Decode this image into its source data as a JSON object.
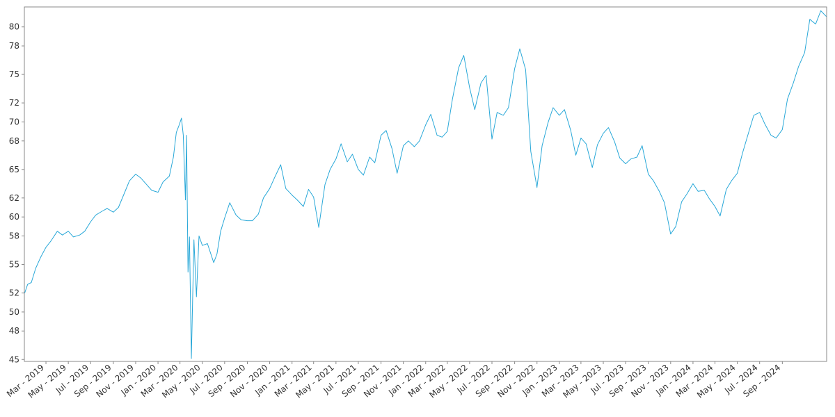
{
  "chart_data": {
    "type": "line",
    "title": "",
    "xlabel": "",
    "ylabel": "",
    "xlim": [
      "2019-01-01",
      "2024-12-31"
    ],
    "ylim": [
      44.8,
      82.1
    ],
    "grid": false,
    "legend": "none",
    "line_color": "#29a8d8",
    "y_ticks": [
      45,
      48,
      50,
      52,
      55,
      58,
      60,
      62,
      65,
      68,
      70,
      72,
      75,
      78,
      80
    ],
    "y_tick_labels": [
      "45",
      "48",
      "50",
      "52",
      "55",
      "58",
      "60",
      "62",
      "65",
      "68",
      "70",
      "72",
      "75",
      "78",
      "80"
    ],
    "x_ticks": [
      "2019-03-01",
      "2019-05-01",
      "2019-07-01",
      "2019-09-01",
      "2019-11-01",
      "2020-01-01",
      "2020-03-01",
      "2020-05-01",
      "2020-07-01",
      "2020-09-01",
      "2020-11-01",
      "2021-01-01",
      "2021-03-01",
      "2021-05-01",
      "2021-07-01",
      "2021-09-01",
      "2021-11-01",
      "2022-01-01",
      "2022-03-01",
      "2022-05-01",
      "2022-07-01",
      "2022-09-01",
      "2022-11-01",
      "2023-01-01",
      "2023-03-01",
      "2023-05-01",
      "2023-07-01",
      "2023-09-01",
      "2023-11-01",
      "2024-01-01",
      "2024-03-01",
      "2024-05-01",
      "2024-07-01",
      "2024-09-01"
    ],
    "x_tick_labels": [
      "Mar - 2019",
      "May - 2019",
      "Jul - 2019",
      "Sep - 2019",
      "Nov - 2019",
      "Jan - 2020",
      "Mar - 2020",
      "May - 2020",
      "Jul - 2020",
      "Sep - 2020",
      "Nov - 2020",
      "Jan - 2021",
      "Mar - 2021",
      "May - 2021",
      "Jul - 2021",
      "Sep - 2021",
      "Nov - 2021",
      "Jan - 2022",
      "Mar - 2022",
      "May - 2022",
      "Jul - 2022",
      "Sep - 2022",
      "Nov - 2022",
      "Jan - 2023",
      "Mar - 2023",
      "May - 2023",
      "Jul - 2023",
      "Sep - 2023",
      "Nov - 2023",
      "Jan - 2024",
      "Mar - 2024",
      "May - 2024",
      "Jul - 2024",
      "Sep - 2024"
    ],
    "series": [
      {
        "x": [
          "2019-01-02",
          "2019-01-10",
          "2019-01-20",
          "2019-02-01",
          "2019-02-15",
          "2019-03-01",
          "2019-03-15",
          "2019-04-01",
          "2019-04-15",
          "2019-05-01",
          "2019-05-15",
          "2019-06-01",
          "2019-06-15",
          "2019-07-01",
          "2019-07-15",
          "2019-08-01",
          "2019-08-15",
          "2019-09-01",
          "2019-09-15",
          "2019-10-01",
          "2019-10-15",
          "2019-11-01",
          "2019-11-15",
          "2019-12-01",
          "2019-12-15",
          "2020-01-01",
          "2020-01-15",
          "2020-02-01",
          "2020-02-12",
          "2020-02-20",
          "2020-02-27",
          "2020-03-05",
          "2020-03-10",
          "2020-03-16",
          "2020-03-19",
          "2020-03-23",
          "2020-03-27",
          "2020-04-01",
          "2020-04-08",
          "2020-04-15",
          "2020-04-22",
          "2020-05-01",
          "2020-05-15",
          "2020-06-01",
          "2020-06-10",
          "2020-06-20",
          "2020-07-01",
          "2020-07-15",
          "2020-08-01",
          "2020-08-15",
          "2020-09-01",
          "2020-09-15",
          "2020-10-01",
          "2020-10-15",
          "2020-11-01",
          "2020-11-15",
          "2020-12-01",
          "2020-12-15",
          "2021-01-01",
          "2021-01-15",
          "2021-02-01",
          "2021-02-15",
          "2021-03-01",
          "2021-03-15",
          "2021-04-01",
          "2021-04-15",
          "2021-05-01",
          "2021-05-15",
          "2021-06-01",
          "2021-06-15",
          "2021-07-01",
          "2021-07-15",
          "2021-08-01",
          "2021-08-15",
          "2021-09-01",
          "2021-09-15",
          "2021-10-01",
          "2021-10-15",
          "2021-11-01",
          "2021-11-15",
          "2021-12-01",
          "2021-12-15",
          "2022-01-01",
          "2022-01-15",
          "2022-02-01",
          "2022-02-15",
          "2022-03-01",
          "2022-03-15",
          "2022-04-01",
          "2022-04-15",
          "2022-05-01",
          "2022-05-15",
          "2022-06-01",
          "2022-06-15",
          "2022-07-01",
          "2022-07-15",
          "2022-08-01",
          "2022-08-15",
          "2022-09-01",
          "2022-09-15",
          "2022-10-01",
          "2022-10-15",
          "2022-11-01",
          "2022-11-15",
          "2022-12-01",
          "2022-12-15",
          "2023-01-01",
          "2023-01-15",
          "2023-02-01",
          "2023-02-15",
          "2023-03-01",
          "2023-03-15",
          "2023-04-01",
          "2023-04-15",
          "2023-05-01",
          "2023-05-15",
          "2023-06-01",
          "2023-06-15",
          "2023-07-01",
          "2023-07-15",
          "2023-08-01",
          "2023-08-15",
          "2023-09-01",
          "2023-09-15",
          "2023-10-01",
          "2023-10-15",
          "2023-11-01",
          "2023-11-15",
          "2023-12-01",
          "2023-12-15",
          "2024-01-01",
          "2024-01-15",
          "2024-02-01",
          "2024-02-15",
          "2024-03-01",
          "2024-03-15",
          "2024-04-01",
          "2024-04-15",
          "2024-05-01",
          "2024-05-15",
          "2024-06-01",
          "2024-06-15",
          "2024-07-01",
          "2024-07-15",
          "2024-08-01",
          "2024-08-15",
          "2024-09-01",
          "2024-09-15",
          "2024-10-01",
          "2024-10-15",
          "2024-11-01",
          "2024-11-15",
          "2024-12-01",
          "2024-12-15",
          "2024-12-30"
        ],
        "values": [
          52.0,
          52.9,
          53.1,
          54.6,
          55.8,
          56.8,
          57.5,
          58.5,
          58.1,
          58.5,
          57.9,
          58.1,
          58.5,
          59.5,
          60.2,
          60.6,
          60.9,
          60.5,
          61.0,
          62.5,
          63.8,
          64.5,
          64.1,
          63.4,
          62.8,
          62.6,
          63.7,
          64.3,
          66.3,
          68.9,
          69.6,
          70.4,
          68.6,
          61.8,
          68.6,
          54.2,
          57.9,
          45.1,
          57.6,
          51.6,
          58.0,
          57.0,
          57.2,
          55.2,
          56.1,
          58.5,
          59.9,
          61.5,
          60.2,
          59.7,
          59.6,
          59.6,
          60.3,
          62.0,
          63.0,
          64.2,
          65.5,
          63.0,
          62.3,
          61.8,
          61.1,
          62.9,
          62.1,
          58.9,
          63.4,
          65.0,
          66.1,
          67.7,
          65.8,
          66.6,
          65.0,
          64.4,
          66.3,
          65.7,
          68.6,
          69.1,
          67.2,
          64.6,
          67.5,
          68.0,
          67.4,
          68.0,
          69.7,
          70.8,
          68.6,
          68.4,
          69.0,
          72.4,
          75.7,
          77.0,
          73.6,
          71.3,
          74.1,
          74.9,
          68.2,
          71.0,
          70.7,
          71.5,
          75.6,
          77.7,
          75.5,
          66.9,
          63.1,
          67.5,
          69.9,
          71.5,
          70.7,
          71.3,
          69.1,
          66.5,
          68.3,
          67.7,
          65.2,
          67.6,
          68.8,
          69.4,
          67.9,
          66.2,
          65.6,
          66.1,
          66.3,
          67.5,
          64.5,
          63.8,
          62.7,
          61.5,
          58.2,
          59.0,
          61.6,
          62.4,
          63.5,
          62.7,
          62.8,
          61.9,
          61.1,
          60.1,
          62.9,
          63.8,
          64.6,
          66.7,
          68.9,
          70.7,
          71.0,
          69.8,
          68.6,
          68.3,
          69.2,
          72.4,
          74.1,
          75.8,
          77.3,
          80.8,
          80.3,
          81.7,
          81.1
        ]
      }
    ]
  }
}
